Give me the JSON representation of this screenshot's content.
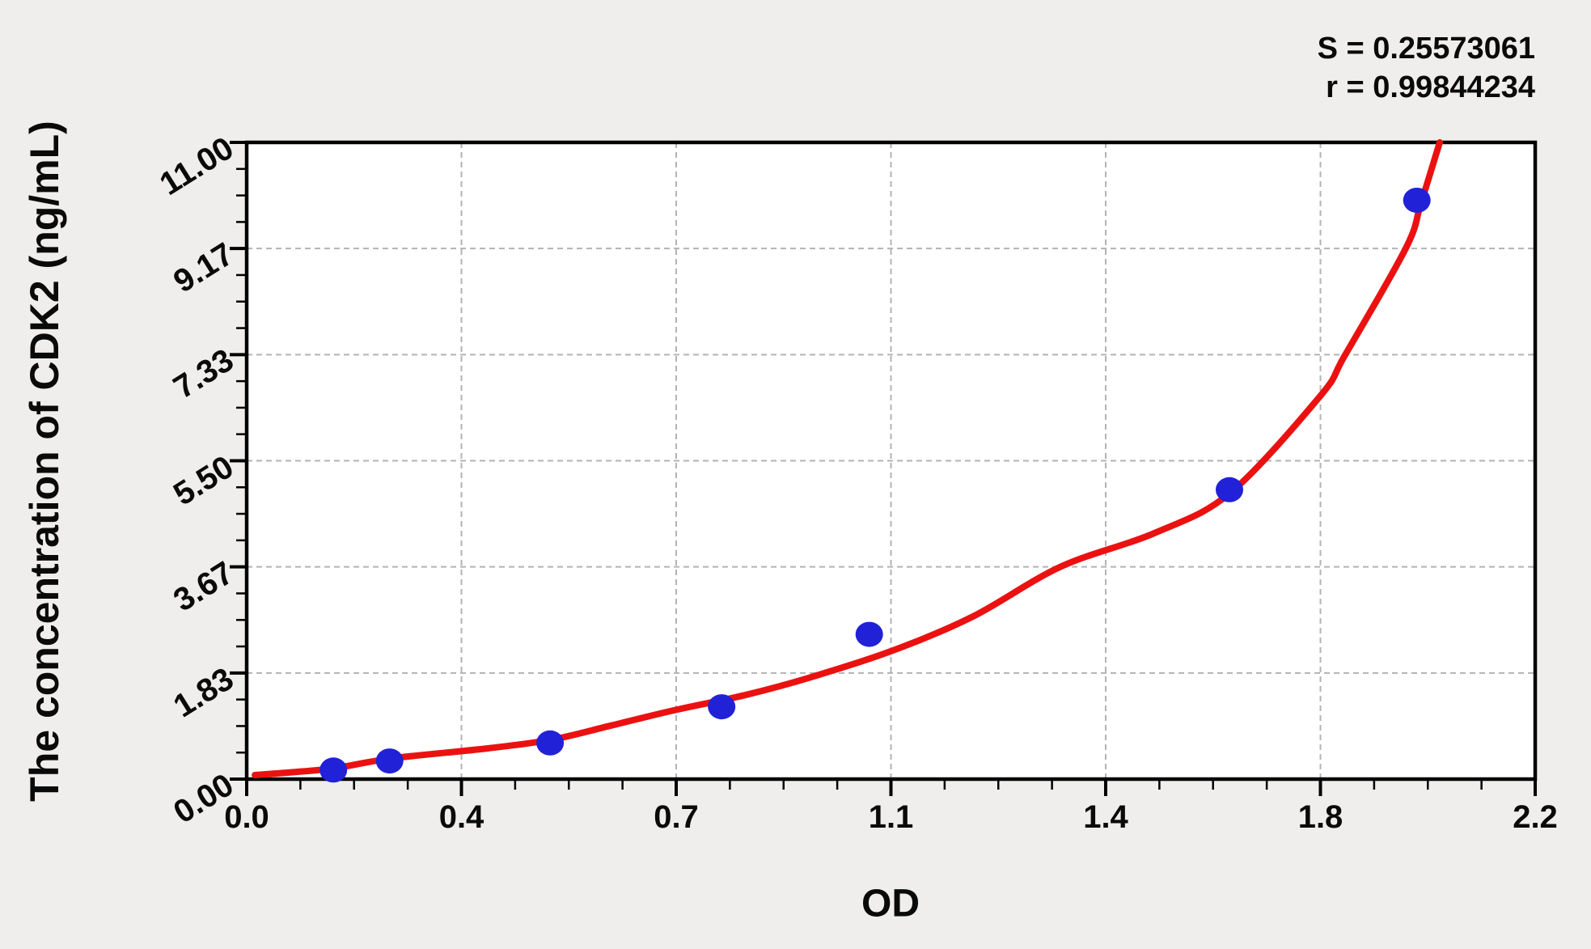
{
  "annotations": {
    "s_line": "S = 0.25573061",
    "r_line": "r = 0.99844234"
  },
  "chart_data": {
    "type": "scatter",
    "title": "",
    "xlabel": "OD",
    "ylabel": "The concentration of CDK2 (ng/mL)",
    "xlim": [
      0,
      2.2
    ],
    "ylim": [
      0,
      11
    ],
    "x_tick_labels": [
      "0.0",
      "0.4",
      "0.7",
      "1.1",
      "1.4",
      "1.8",
      "2.2"
    ],
    "y_tick_labels": [
      "0.00",
      "1.83",
      "3.67",
      "5.50",
      "7.33",
      "9.17",
      "11.00"
    ],
    "minor_ticks_per_major": 4,
    "grid": "dashed gray at major ticks, plot framed with black border",
    "legend_position": "none",
    "fit_stats": {
      "S": 0.25573061,
      "r": 0.99844234
    },
    "points": [
      {
        "od": 0.148,
        "conc": 0.156
      },
      {
        "od": 0.244,
        "conc": 0.3125
      },
      {
        "od": 0.518,
        "conc": 0.625
      },
      {
        "od": 0.811,
        "conc": 1.25
      },
      {
        "od": 1.063,
        "conc": 2.5
      },
      {
        "od": 1.678,
        "conc": 5.0
      },
      {
        "od": 1.998,
        "conc": 10.0
      }
    ],
    "fit_curve_samples": [
      [
        0.014,
        0.07
      ],
      [
        0.08,
        0.12
      ],
      [
        0.15,
        0.19
      ],
      [
        0.25,
        0.36
      ],
      [
        0.41,
        0.53
      ],
      [
        0.52,
        0.68
      ],
      [
        0.62,
        0.92
      ],
      [
        0.73,
        1.19
      ],
      [
        0.85,
        1.45
      ],
      [
        0.96,
        1.75
      ],
      [
        1.1,
        2.21
      ],
      [
        1.24,
        2.81
      ],
      [
        1.39,
        3.67
      ],
      [
        1.55,
        4.25
      ],
      [
        1.68,
        4.95
      ],
      [
        1.833,
        6.62
      ],
      [
        1.875,
        7.32
      ],
      [
        1.979,
        9.17
      ],
      [
        2.005,
        9.95
      ],
      [
        2.037,
        11.0
      ]
    ],
    "colors": {
      "point": "#2121d8",
      "curve": "#ec1111",
      "grid": "#b3b3b3",
      "axis": "#000000",
      "background": "#efeeec",
      "plot_background": "#ffffff"
    }
  }
}
